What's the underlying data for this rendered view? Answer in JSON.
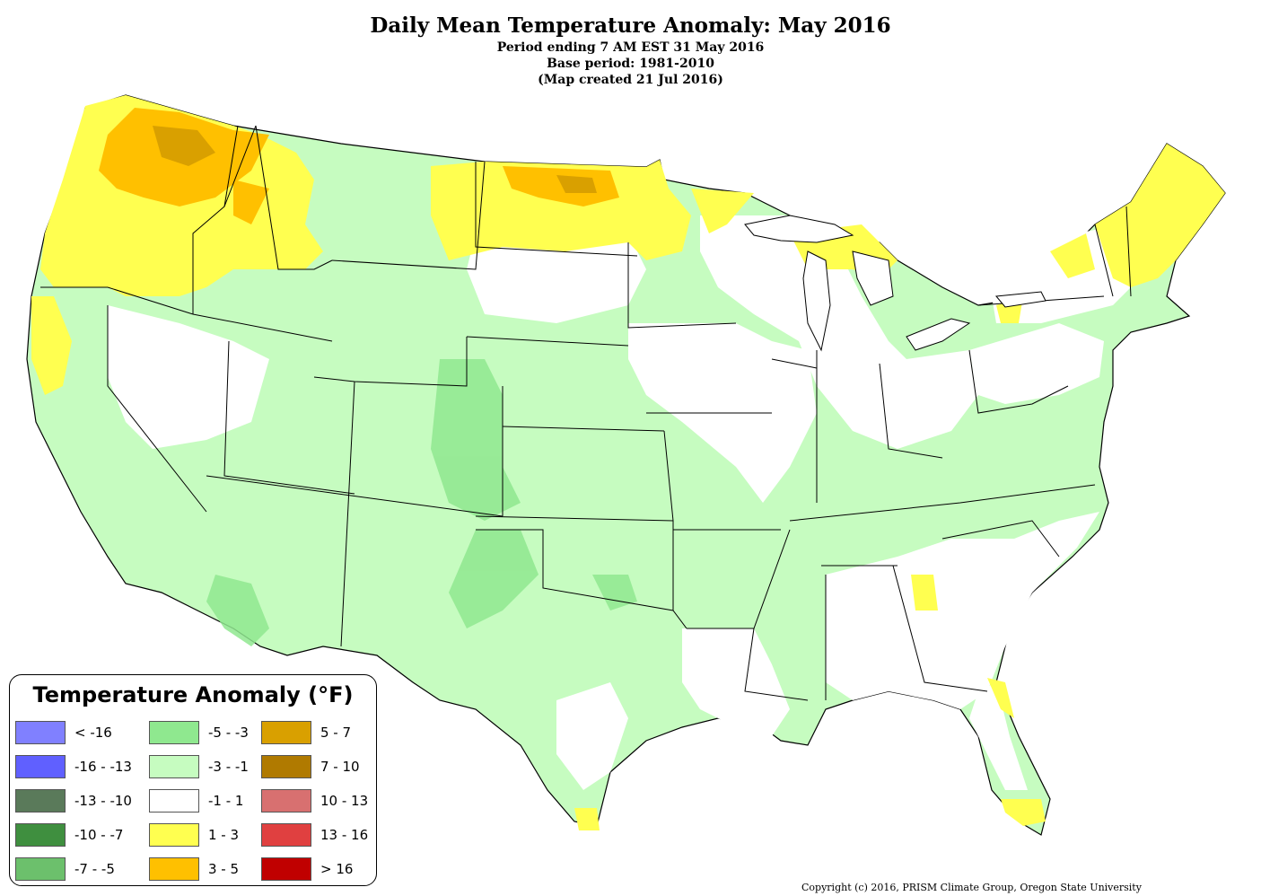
{
  "title": {
    "main": "Daily Mean Temperature Anomaly: May 2016",
    "line1": "Period ending 7 AM EST 31 May 2016",
    "line2": "Base period: 1981-2010",
    "line3": "(Map created 21 Jul 2016)"
  },
  "legend": {
    "title": "Temperature Anomaly (°F)",
    "items": [
      {
        "label": "< -16",
        "color": "#8080ff"
      },
      {
        "label": "-16 - -13",
        "color": "#6060ff"
      },
      {
        "label": "-13 - -10",
        "color": "#5a7a5a"
      },
      {
        "label": "-10 - -7",
        "color": "#3f8f3f"
      },
      {
        "label": "-7 - -5",
        "color": "#6cc06c"
      },
      {
        "label": "-5 - -3",
        "color": "#8fe88f"
      },
      {
        "label": "-3 - -1",
        "color": "#c6fcc0"
      },
      {
        "label": "-1 - 1",
        "color": "#ffffff"
      },
      {
        "label": "1 - 3",
        "color": "#ffff50"
      },
      {
        "label": "3 - 5",
        "color": "#ffc000"
      },
      {
        "label": "5 - 7",
        "color": "#d9a000"
      },
      {
        "label": "7 - 10",
        "color": "#b07a00"
      },
      {
        "label": "10 - 13",
        "color": "#d87070"
      },
      {
        "label": "13 - 16",
        "color": "#e04040"
      },
      {
        "label": "> 16",
        "color": "#c00000"
      }
    ]
  },
  "copyright": "Copyright (c) 2016, PRISM Climate Group, Oregon State University"
}
